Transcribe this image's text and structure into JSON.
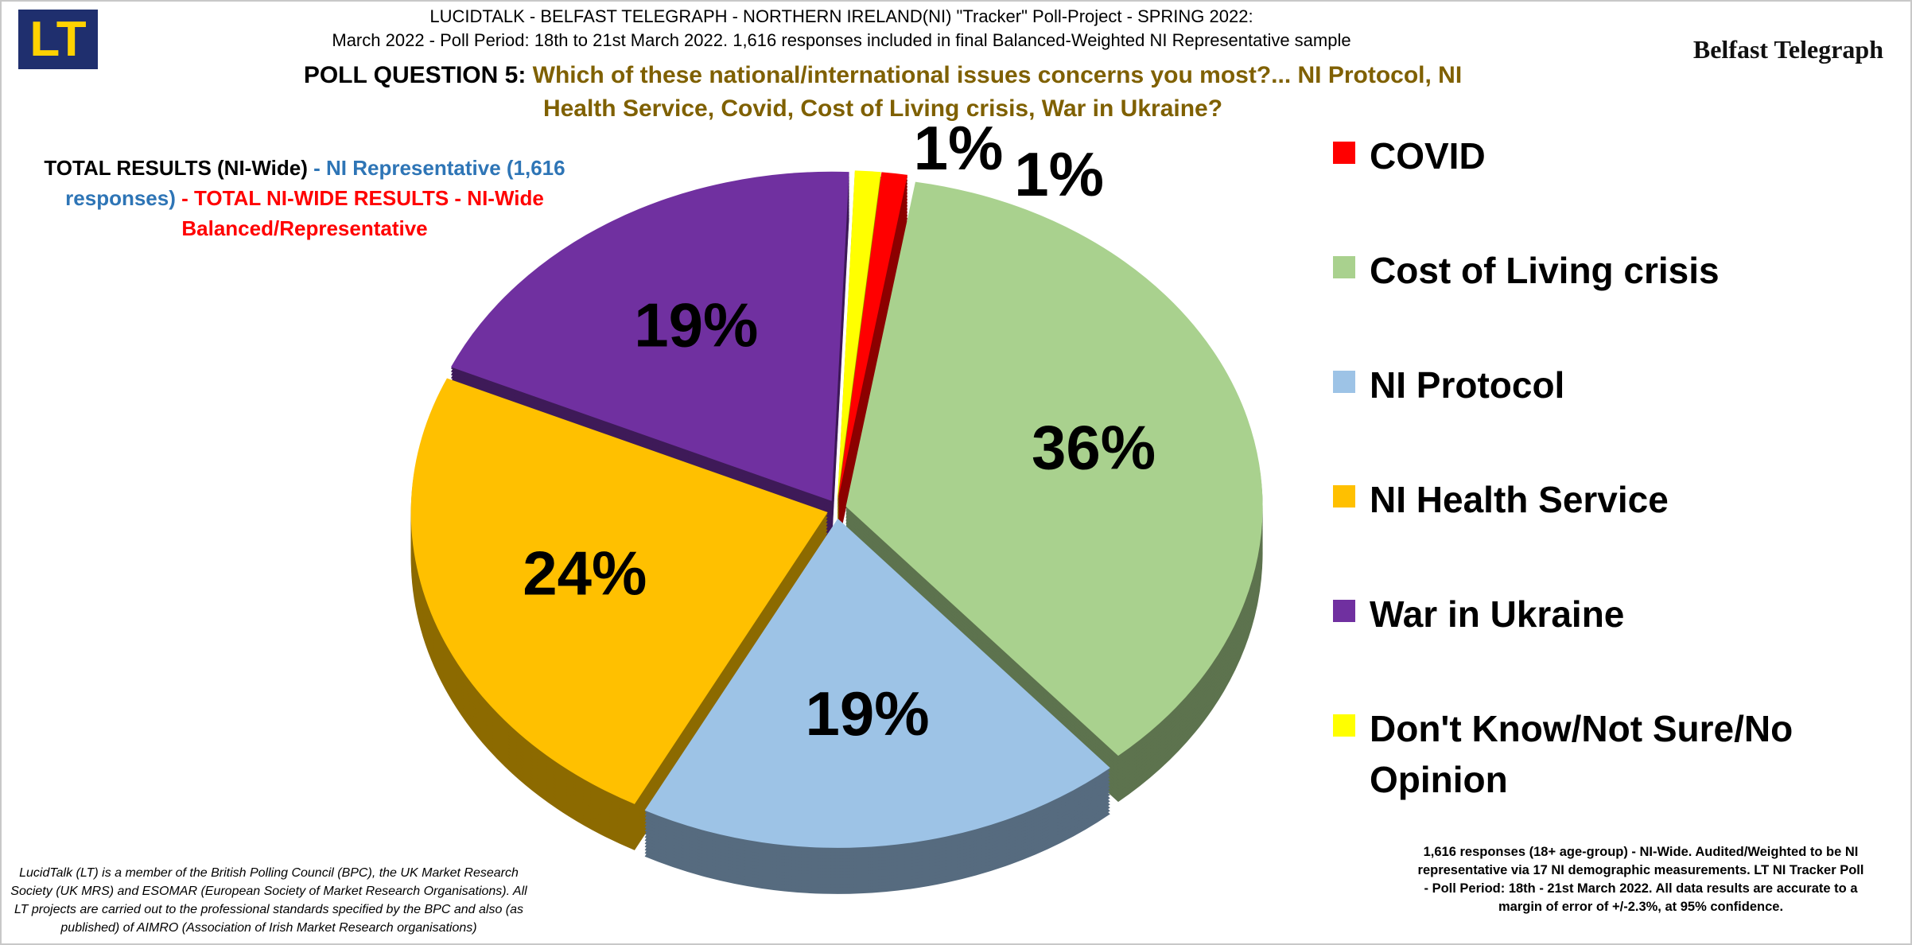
{
  "logo": "LT",
  "brand": "Belfast Telegraph",
  "header": {
    "line1": "LUCIDTALK - BELFAST TELEGRAPH - NORTHERN IRELAND(NI) \"Tracker\" Poll-Project - SPRING 2022:",
    "line2": "March 2022 - Poll Period: 18th to 21st March 2022. 1,616 responses  included in final Balanced-Weighted NI Representative sample"
  },
  "chart_data": {
    "type": "pie",
    "question_label": "POLL QUESTION 5:",
    "title": "Which of these national/international issues concerns you most?... NI Protocol, NI Health Service, Covid, Cost of Living crisis, War in Ukraine?",
    "note": [
      "TOTAL RESULTS (NI-Wide)",
      "- NI Representative (1,616 responses)",
      "- TOTAL NI-WIDE RESULTS - NI-Wide Balanced/Representative"
    ],
    "categories": [
      "COVID",
      "Cost of Living crisis",
      "NI Protocol",
      "NI Health Service",
      "War in Ukraine",
      "Don't Know/Not Sure/No Opinion"
    ],
    "values": [
      1,
      36,
      19,
      24,
      19,
      1
    ],
    "value_labels": [
      "1%",
      "36%",
      "19%",
      "24%",
      "19%",
      "1%"
    ],
    "colors": [
      "#ff0000",
      "#a9d18e",
      "#9dc3e6",
      "#ffc000",
      "#7030a0",
      "#ffff00"
    ]
  },
  "footnotes": {
    "left": "LucidTalk (LT) is a member of the British Polling Council (BPC), the UK Market Research Society (UK MRS) and ESOMAR (European Society of Market Research Organisations). All LT projects are carried out to the professional standards specified by the BPC and also (as published) of AIMRO (Association of Irish Market Research organisations)",
    "right": "1,616 responses (18+ age-group) - NI-Wide. Audited/Weighted to be NI representative via 17 NI demographic measurements. LT NI Tracker Poll - Poll Period: 18th - 21st March 2022. All data results are accurate to a margin of error of +/-2.3%, at 95% confidence."
  }
}
